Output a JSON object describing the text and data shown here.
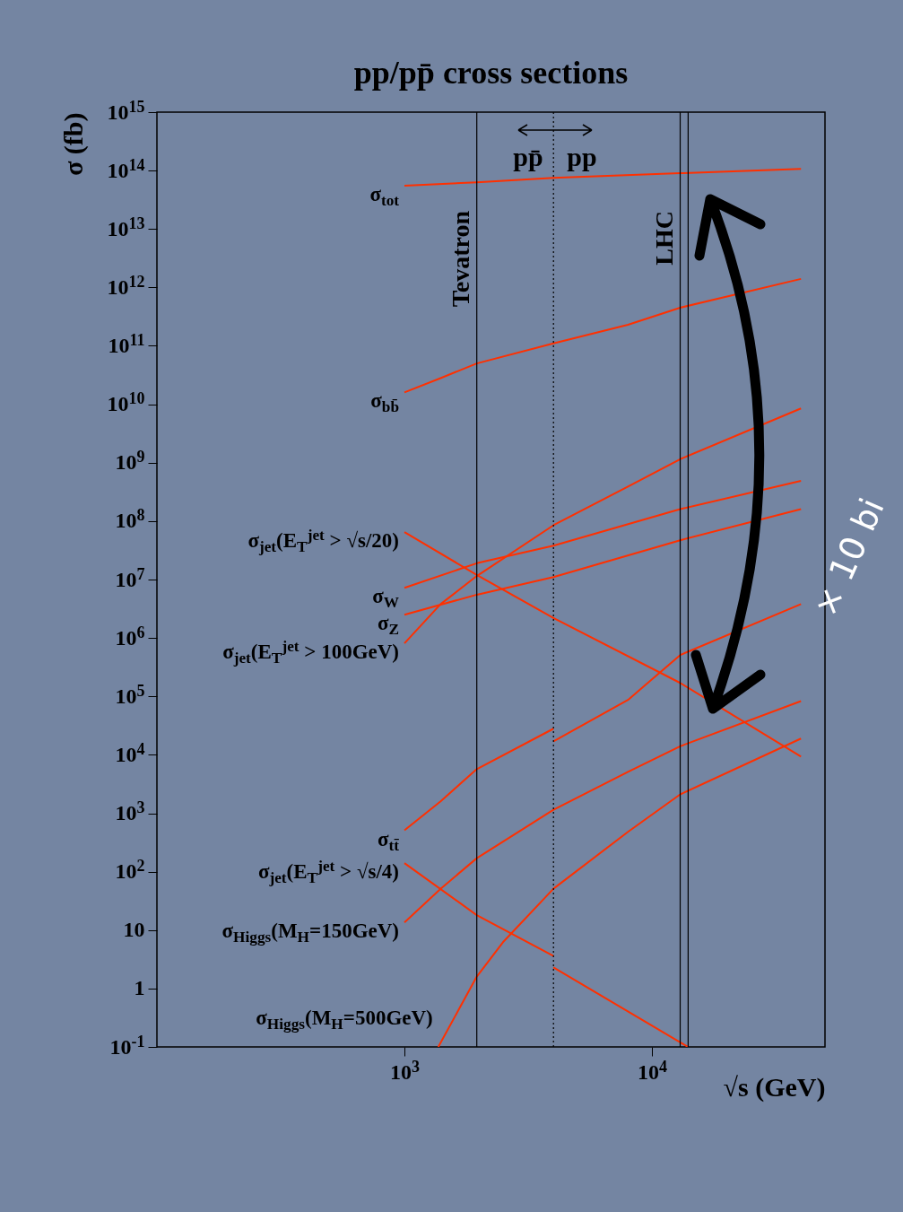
{
  "chart_data": {
    "type": "line",
    "title": "pp/pp̄ cross sections",
    "xlabel": "√s (GeV)",
    "ylabel": "σ (fb)",
    "log": "xy",
    "xlim": [
      100,
      50000
    ],
    "ylim": [
      0.1,
      1000000000000000.0
    ],
    "xticks": [
      {
        "value": 1000,
        "label": "10$^{3}$"
      },
      {
        "value": 10000,
        "label": "10$^{4}$"
      }
    ],
    "yticks": [
      {
        "value": 0.1,
        "label": "10$^{-1}$"
      },
      1,
      10,
      {
        "value": 100,
        "label": "10$^{2}$"
      },
      {
        "value": 1000,
        "label": "10$^{3}$"
      },
      {
        "value": 10000,
        "label": "10$^{4}$"
      },
      {
        "value": 100000,
        "label": "10$^{5}$"
      },
      {
        "value": 1000000,
        "label": "10$^{6}$"
      },
      {
        "value": 10000000,
        "label": "10$^{7}$"
      },
      {
        "value": 100000000,
        "label": "10$^{8}$"
      },
      {
        "value": 1000000000,
        "label": "10$^{9}$"
      },
      {
        "value": 10000000000,
        "label": "10$^{10}$"
      },
      {
        "value": 100000000000,
        "label": "10$^{11}$"
      },
      {
        "value": 1000000000000,
        "label": "10$^{12}$"
      },
      {
        "value": 10000000000000,
        "label": "10$^{13}$"
      },
      {
        "value": 100000000000000,
        "label": "10$^{14}$"
      },
      {
        "value": 1000000000000000,
        "label": "10$^{15}$"
      }
    ],
    "series": [
      {
        "name": "σ$_{tot}$",
        "color": "#ff3000",
        "x": [
          1000,
          1960,
          4000,
          13000,
          40000
        ],
        "values": [
          55000000000000.0,
          63000000000000.0,
          75000000000000.0,
          90000000000000.0,
          107000000000000.0
        ]
      },
      {
        "name": "σ$_{bb̄}$",
        "color": "#ff3000",
        "x": [
          1000,
          1400,
          1960,
          4000,
          8000,
          13000,
          40000
        ],
        "values": [
          16000000000.0,
          28000000000.0,
          50000000000.0,
          110000000000.0,
          230000000000.0,
          450000000000.0,
          1400000000000.0
        ]
      },
      {
        "name": "σ$_{jet}$(E$_{T}$$^{jet}$ > √s/20)",
        "color": "#ff3000",
        "x": [
          1000,
          1960,
          4000,
          13000,
          40000
        ],
        "values": [
          65000000.0,
          12000000.0,
          2200000.0,
          170000.0,
          9300.0
        ]
      },
      {
        "name": "σ$_{W}$",
        "color": "#ff3000",
        "x": [
          1000,
          1960,
          4000,
          13000,
          40000
        ],
        "values": [
          7200000.0,
          19000000.0,
          38000000.0,
          160000000.0,
          490000000.0
        ]
      },
      {
        "name": "σ$_{Z}$",
        "color": "#ff3000",
        "x": [
          1000,
          1960,
          4000,
          13000,
          40000
        ],
        "values": [
          2500000.0,
          5500000.0,
          11000000.0,
          47000000.0,
          160000000.0
        ]
      },
      {
        "name": "σ$_{jet}$(E$_{T}$$^{jet}$ > 100GeV)",
        "color": "#ff3000",
        "x": [
          1000,
          1400,
          1960,
          4000,
          8000,
          13000,
          40000
        ],
        "values": [
          810000.0,
          3800000.0,
          11500000.0,
          85000000.0,
          390000000.0,
          1150000000.0,
          8500000000.0
        ]
      },
      {
        "name": "σ$_{tt̄}$",
        "color": "#ff3000",
        "x": [
          1000,
          1400,
          1960,
          4000
        ],
        "values": [
          510,
          1600,
          5700,
          28000
        ]
      },
      {
        "color": "#ff3000",
        "x": [
          4000,
          8000,
          13000,
          40000
        ],
        "values": [
          17000,
          87000,
          510000,
          3800000
        ]
      },
      {
        "name": "σ$_{jet}$(E$_{T}$$^{jet}$ > √s/4)",
        "color": "#ff3000",
        "x": [
          1000,
          1960,
          4000
        ],
        "values": [
          140,
          18,
          3.6
        ]
      },
      {
        "color": "#ff3000",
        "x": [
          4000,
          13000,
          14000
        ],
        "values": [
          2.3,
          0.12,
          0.1
        ]
      },
      {
        "name": "σ$_{Higgs}$(M$_{H}$=150GeV)",
        "color": "#ff3000",
        "x": [
          1000,
          1400,
          1960,
          4000,
          8000,
          13000,
          40000
        ],
        "values": [
          13.5,
          51,
          170,
          1150,
          5100,
          14000,
          83000
        ]
      },
      {
        "name": "σ$_{Higgs}$(M$_{H}$=500GeV)",
        "color": "#ff3000",
        "x": [
          1370,
          1960,
          2500,
          4000,
          8000,
          13000,
          40000
        ],
        "values": [
          0.1,
          1.6,
          6.2,
          51,
          480,
          2100,
          19000
        ]
      }
    ],
    "ref_lines": [
      {
        "axis": "x",
        "value": 1960,
        "label": "Tevatron",
        "color": "#000000"
      },
      {
        "axis": "x",
        "value": 4000,
        "line_style": "dotted",
        "color": "#000000"
      },
      {
        "axis": "x",
        "value": 13000,
        "label": "LHC",
        "color": "#000000"
      },
      {
        "axis": "x",
        "value": 14000,
        "color": "#000000"
      }
    ],
    "annotations": [
      "pp̄",
      "pp",
      "× 10 bi"
    ]
  }
}
